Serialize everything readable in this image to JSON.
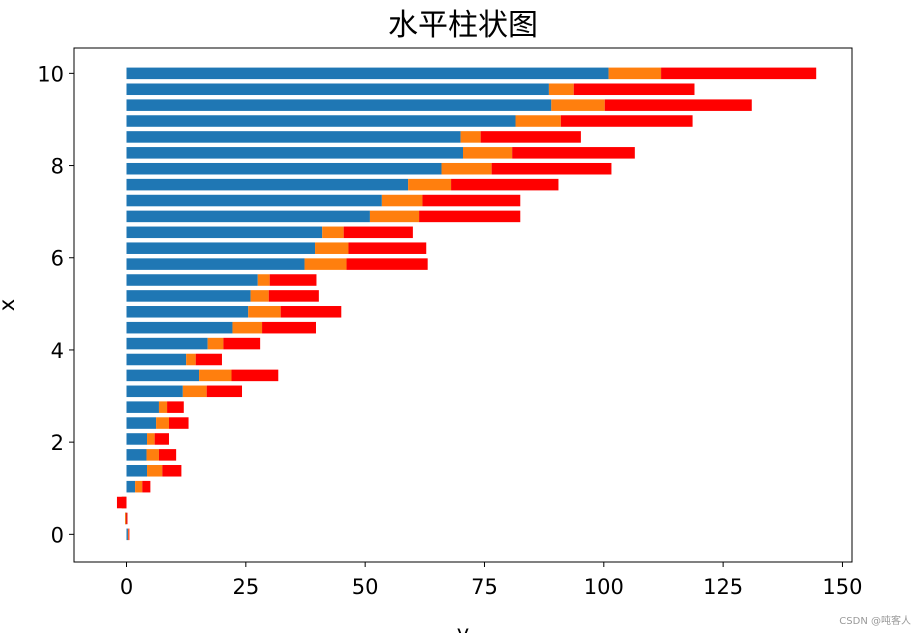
{
  "chart_data": {
    "type": "bar",
    "orientation": "horizontal",
    "stacked": true,
    "title": "水平柱状图",
    "xlabel": "y",
    "ylabel": "x",
    "xlim": [
      -11,
      152
    ],
    "ylim": [
      -0.6,
      10.55
    ],
    "xticks": [
      0,
      25,
      50,
      75,
      100,
      125,
      150
    ],
    "yticks": [
      0,
      2,
      4,
      6,
      8,
      10
    ],
    "grid": false,
    "x": [
      0.0,
      0.345,
      0.69,
      1.034,
      1.379,
      1.724,
      2.069,
      2.414,
      2.759,
      3.103,
      3.448,
      3.793,
      4.138,
      4.483,
      4.828,
      5.172,
      5.517,
      5.862,
      6.207,
      6.552,
      6.897,
      7.241,
      7.586,
      7.931,
      8.276,
      8.621,
      8.966,
      9.31,
      9.655,
      10.0
    ],
    "series": [
      {
        "color": "#1f77b4",
        "values": [
          0.3,
          -0.3,
          -1.0,
          1.8,
          4.3,
          4.2,
          4.3,
          6.2,
          6.8,
          11.8,
          15.2,
          12.5,
          17.0,
          22.2,
          25.5,
          26.0,
          27.5,
          37.3,
          39.5,
          41.0,
          51.0,
          53.5,
          59.0,
          66.0,
          70.5,
          70.0,
          81.5,
          89.0,
          88.5,
          101.0
        ]
      },
      {
        "color": "#ff7f0e",
        "values": [
          0.15,
          0.25,
          1.0,
          1.5,
          3.2,
          2.6,
          1.6,
          2.7,
          1.7,
          5.0,
          6.8,
          2.0,
          3.3,
          6.2,
          6.8,
          3.8,
          2.5,
          8.8,
          7.0,
          4.5,
          10.3,
          8.5,
          9.0,
          10.5,
          10.3,
          4.2,
          9.5,
          11.2,
          5.2,
          11.0
        ]
      },
      {
        "color": "#ff0000",
        "values": [
          0.15,
          0.25,
          -2.0,
          1.7,
          4.0,
          3.6,
          3.0,
          4.1,
          3.5,
          7.4,
          9.8,
          5.5,
          7.7,
          11.3,
          12.7,
          10.5,
          9.8,
          17.0,
          16.3,
          14.5,
          21.2,
          20.5,
          22.5,
          25.1,
          25.7,
          21.0,
          27.6,
          30.8,
          25.3,
          32.5
        ]
      }
    ]
  },
  "watermark": "CSDN @吨客人"
}
